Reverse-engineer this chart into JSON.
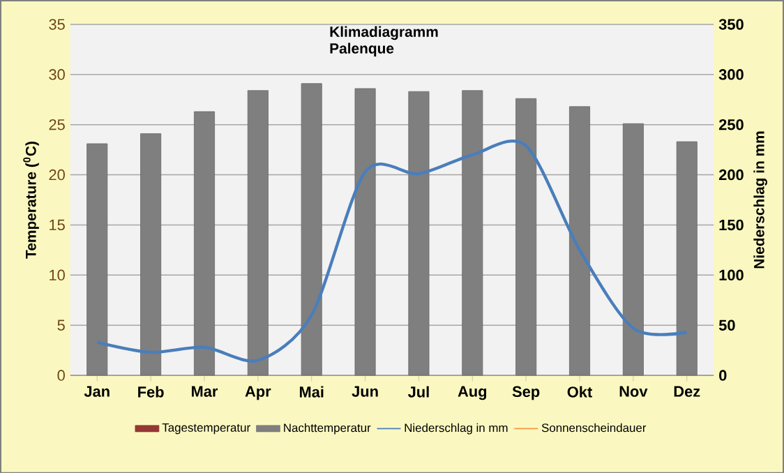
{
  "chart_data": {
    "type": "bar",
    "title": "Klimadiagramm Palenque",
    "ylabel": "Temperature ($^{0}$C)",
    "y2label": "Niederschlag in mm",
    "categories": [
      "Jan",
      "Feb",
      "Mar",
      "Apr",
      "Mai",
      "Jun",
      "Jul",
      "Aug",
      "Sep",
      "Okt",
      "Nov",
      "Dez"
    ],
    "series": [
      {
        "name": "Tagestemperatur",
        "color": "#953735",
        "values": [
          null,
          null,
          null,
          null,
          null,
          null,
          null,
          null,
          null,
          null,
          null,
          null
        ]
      },
      {
        "name": "Nachttemperatur",
        "color": "#7f7f7f",
        "values": [
          23.1,
          24.1,
          26.3,
          28.4,
          29.1,
          28.6,
          28.3,
          28.4,
          27.6,
          26.8,
          25.1,
          23.3
        ]
      },
      {
        "name": "Niederschlag in mm",
        "type": "line",
        "axis": "y2",
        "color": "#4a7ebb",
        "values": [
          33,
          23,
          28,
          15,
          60,
          203,
          201,
          220,
          229,
          125,
          47,
          43
        ]
      },
      {
        "name": "Sonnenscheindauer",
        "type": "line",
        "axis": "y2",
        "color": "#f79646",
        "values": [
          null,
          null,
          null,
          null,
          null,
          null,
          null,
          null,
          null,
          null,
          null,
          null
        ]
      }
    ],
    "ylim": [
      0,
      35
    ],
    "yticks": [
      0,
      5,
      10,
      15,
      20,
      25,
      30,
      35
    ],
    "y2lim": [
      0,
      350
    ],
    "y2ticks": [
      0,
      50,
      100,
      150,
      200,
      250,
      300,
      350
    ],
    "grid": "y",
    "legend": "bottom",
    "marker": "none",
    "line_style": "solid"
  }
}
